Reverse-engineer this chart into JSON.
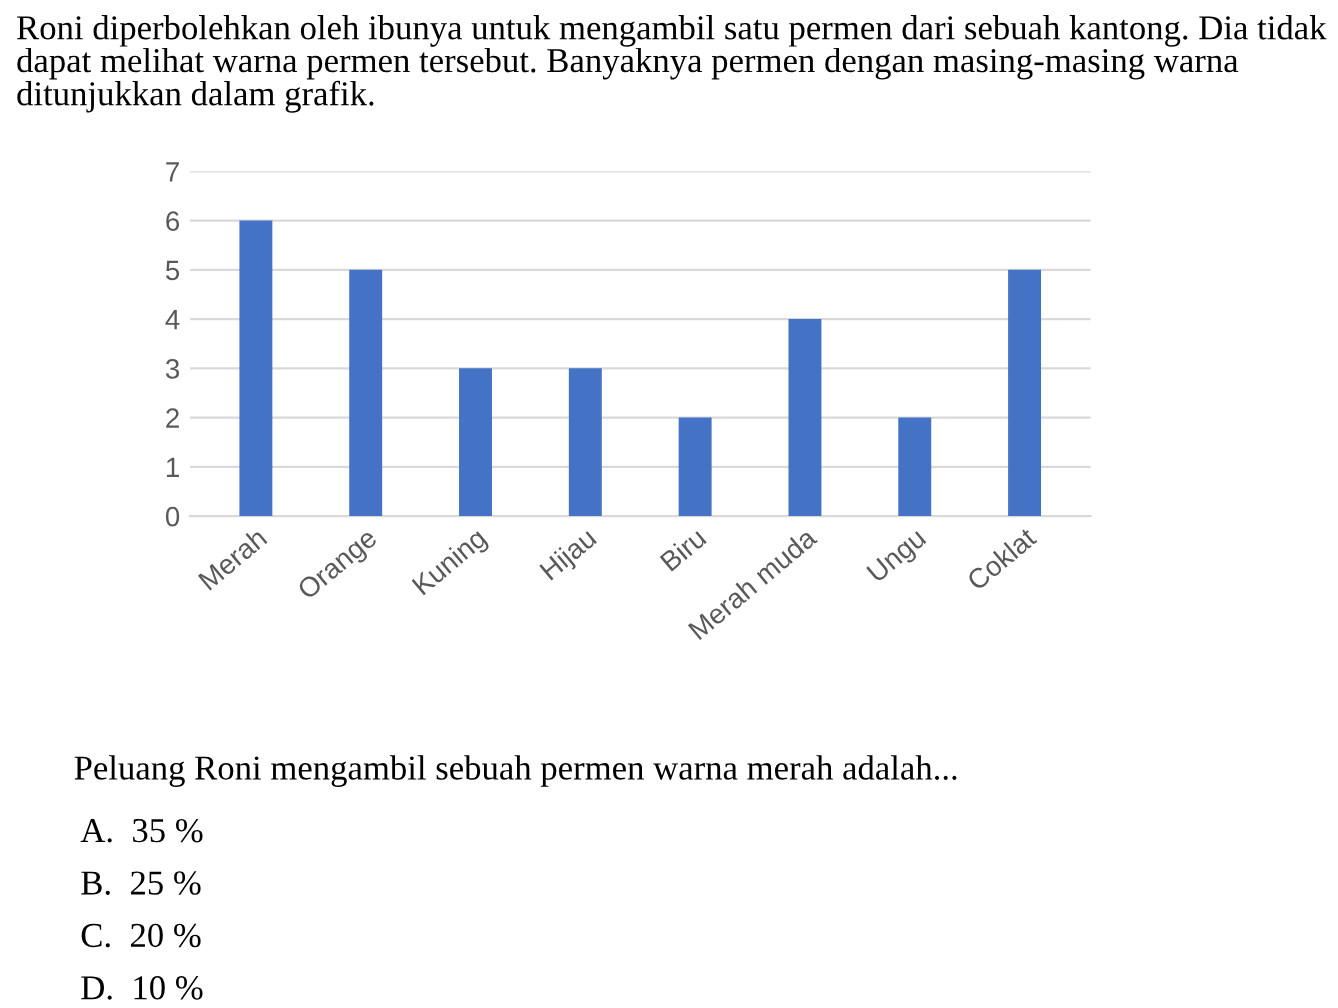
{
  "chart_data": {
    "type": "bar",
    "title": "Roni diperbolehkan oleh ibunya untuk mengambil satu permen dari sebuah kantong. Dia tidak dapat melihat warna permen tersebut. Banyaknya permen dengan masing-masing warna ditunjukkan dalam grafik.",
    "categories": [
      "Merah",
      "Orange",
      "Kuning",
      "Hijau",
      "Biru",
      "Merah muda",
      "Ungu",
      "Coklat"
    ],
    "values": [
      6,
      5,
      3,
      3,
      2,
      4,
      2,
      5
    ],
    "color": "#4472c4",
    "ylim": [
      0,
      7
    ],
    "yticks": [
      0,
      1,
      2,
      3,
      4,
      5,
      6,
      7
    ],
    "grid": "y",
    "annotations": [
      "Peluang Roni mengambil sebuah permen warna merah adalah...",
      "A.  35 %",
      "B.  25 %",
      "C.  20 %",
      "D.  10 %"
    ]
  }
}
